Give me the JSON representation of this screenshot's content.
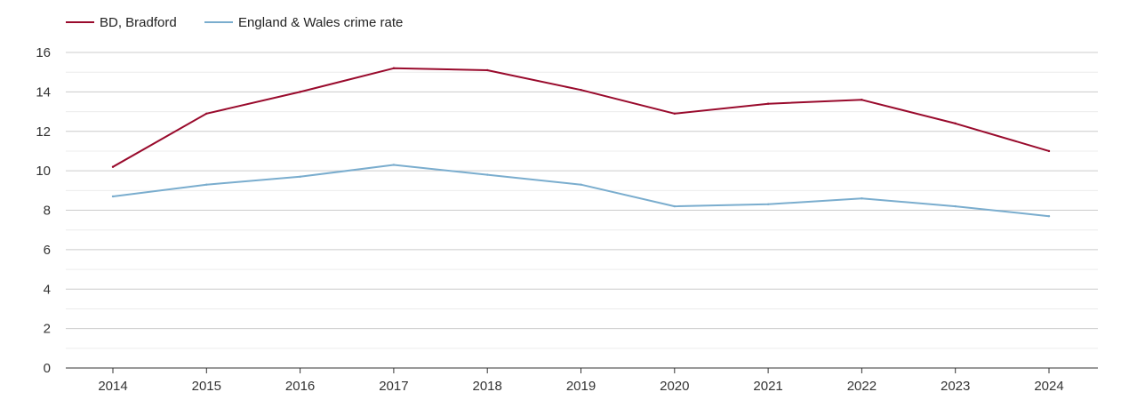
{
  "chart_data": {
    "type": "line",
    "title": "",
    "xlabel": "",
    "ylabel": "",
    "categories": [
      "2014",
      "2015",
      "2016",
      "2017",
      "2018",
      "2019",
      "2020",
      "2021",
      "2022",
      "2023",
      "2024"
    ],
    "ylim": [
      0,
      16
    ],
    "yticks": [
      0,
      2,
      4,
      6,
      8,
      10,
      12,
      14,
      16
    ],
    "grid": true,
    "legend_position": "top-left",
    "series": [
      {
        "name": "BD, Bradford",
        "color": "#990a2c",
        "values": [
          10.2,
          12.9,
          14.0,
          15.2,
          15.1,
          14.1,
          12.9,
          13.4,
          13.6,
          12.4,
          11.0
        ]
      },
      {
        "name": "England & Wales crime rate",
        "color": "#7aadce",
        "values": [
          8.7,
          9.3,
          9.7,
          10.3,
          9.8,
          9.3,
          8.2,
          8.3,
          8.6,
          8.2,
          7.7
        ]
      }
    ]
  }
}
